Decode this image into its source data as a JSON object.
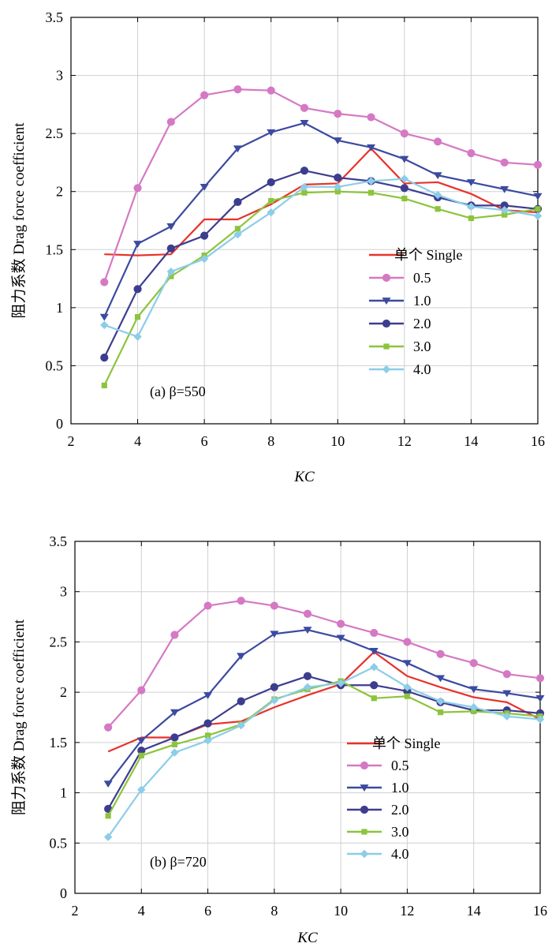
{
  "figure": {
    "ylabel": "阻力系数 Drag force coefficient",
    "xlabel": "KC"
  },
  "colors": {
    "Single": "#e8322a",
    "0.5": "#d579c4",
    "1.0": "#3c4aa0",
    "2.0": "#3d3d8f",
    "3.0": "#8cc43c",
    "4.0": "#8ccde8"
  },
  "markers": {
    "Single": "none",
    "0.5": "circle",
    "1.0": "triangle-down",
    "2.0": "circle",
    "3.0": "square",
    "4.0": "diamond"
  },
  "chart_data": [
    {
      "type": "line",
      "panel_label": "(a) β=550",
      "xlabel": "KC",
      "ylabel": "阻力系数 Drag force coefficient",
      "xlim": [
        2,
        16
      ],
      "ylim": [
        0,
        3.5
      ],
      "xticks": [
        "2",
        "4",
        "6",
        "8",
        "10",
        "12",
        "14",
        "16"
      ],
      "yticks": [
        "0",
        "0.5",
        "1",
        "1.5",
        "2",
        "2.5",
        "3",
        "3.5"
      ],
      "grid": true,
      "legend_position": "center-right",
      "x": [
        3,
        4,
        5,
        6,
        7,
        8,
        9,
        10,
        11,
        12,
        13,
        14,
        15,
        16
      ],
      "series": [
        {
          "name": "单个 Single",
          "key": "Single",
          "values": [
            1.46,
            1.45,
            1.46,
            1.76,
            1.76,
            1.89,
            2.06,
            2.07,
            2.37,
            2.07,
            2.08,
            1.98,
            1.84,
            1.82
          ]
        },
        {
          "name": "0.5",
          "key": "0.5",
          "values": [
            1.22,
            2.03,
            2.6,
            2.83,
            2.88,
            2.87,
            2.72,
            2.67,
            2.64,
            2.5,
            2.43,
            2.33,
            2.25,
            2.23
          ]
        },
        {
          "name": "1.0",
          "key": "1.0",
          "values": [
            0.92,
            1.55,
            1.7,
            2.04,
            2.37,
            2.51,
            2.59,
            2.44,
            2.38,
            2.28,
            2.14,
            2.08,
            2.02,
            1.96
          ]
        },
        {
          "name": "2.0",
          "key": "2.0",
          "values": [
            0.57,
            1.16,
            1.51,
            1.62,
            1.91,
            2.08,
            2.18,
            2.12,
            2.09,
            2.03,
            1.95,
            1.88,
            1.88,
            1.85
          ]
        },
        {
          "name": "3.0",
          "key": "3.0",
          "values": [
            0.33,
            0.92,
            1.27,
            1.45,
            1.68,
            1.92,
            1.99,
            2.0,
            1.99,
            1.94,
            1.85,
            1.77,
            1.8,
            1.85
          ]
        },
        {
          "name": "4.0",
          "key": "4.0",
          "values": [
            0.85,
            0.75,
            1.31,
            1.42,
            1.63,
            1.82,
            2.04,
            2.04,
            2.09,
            2.11,
            1.97,
            1.87,
            1.84,
            1.79
          ]
        }
      ]
    },
    {
      "type": "line",
      "panel_label": "(b) β=720",
      "xlabel": "KC",
      "ylabel": "阻力系数 Drag force coefficient",
      "xlim": [
        2,
        16
      ],
      "ylim": [
        0,
        3.5
      ],
      "xticks": [
        "2",
        "4",
        "6",
        "8",
        "10",
        "12",
        "14",
        "16"
      ],
      "yticks": [
        "0",
        "0.5",
        "1",
        "1.5",
        "2",
        "2.5",
        "3",
        "3.5"
      ],
      "grid": true,
      "legend_position": "center-right",
      "x": [
        3,
        4,
        5,
        6,
        7,
        8,
        9,
        10,
        11,
        12,
        13,
        14,
        15,
        16
      ],
      "series": [
        {
          "name": "单个 Single",
          "key": "Single",
          "values": [
            1.41,
            1.55,
            1.55,
            1.68,
            1.71,
            1.85,
            1.97,
            2.08,
            2.4,
            2.16,
            2.05,
            1.95,
            1.9,
            1.73
          ]
        },
        {
          "name": "0.5",
          "key": "0.5",
          "values": [
            1.65,
            2.02,
            2.57,
            2.86,
            2.91,
            2.86,
            2.78,
            2.68,
            2.59,
            2.5,
            2.38,
            2.29,
            2.18,
            2.14
          ]
        },
        {
          "name": "1.0",
          "key": "1.0",
          "values": [
            1.09,
            1.52,
            1.8,
            1.97,
            2.36,
            2.58,
            2.62,
            2.54,
            2.41,
            2.29,
            2.14,
            2.03,
            1.99,
            1.94
          ]
        },
        {
          "name": "2.0",
          "key": "2.0",
          "values": [
            0.84,
            1.42,
            1.55,
            1.69,
            1.91,
            2.05,
            2.16,
            2.07,
            2.07,
            2.01,
            1.9,
            1.82,
            1.82,
            1.79
          ]
        },
        {
          "name": "3.0",
          "key": "3.0",
          "values": [
            0.77,
            1.37,
            1.48,
            1.57,
            1.68,
            1.93,
            2.03,
            2.11,
            1.94,
            1.96,
            1.8,
            1.81,
            1.79,
            1.76
          ]
        },
        {
          "name": "4.0",
          "key": "4.0",
          "values": [
            0.56,
            1.03,
            1.4,
            1.52,
            1.67,
            1.92,
            2.05,
            2.09,
            2.25,
            2.05,
            1.91,
            1.85,
            1.76,
            1.73
          ]
        }
      ]
    }
  ]
}
